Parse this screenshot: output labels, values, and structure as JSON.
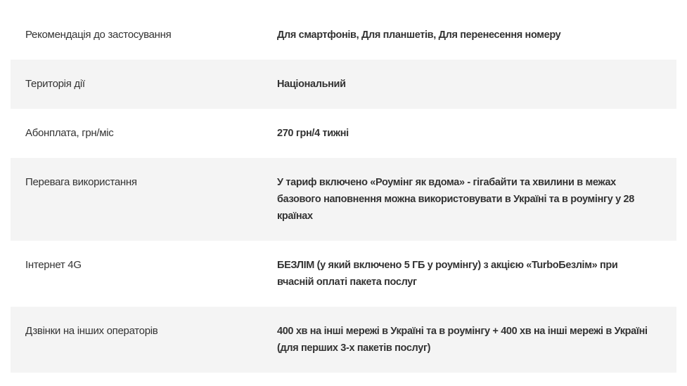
{
  "rows": [
    {
      "label": "Рекомендація до застосування",
      "value": "Для смартфонів, Для планшетів, Для перенесення номеру"
    },
    {
      "label": "Територія дії",
      "value": "Національний"
    },
    {
      "label": "Абонплата, грн/міс",
      "value": "270 грн/4 тижні"
    },
    {
      "label": "Перевага використання",
      "value": "У тариф включено «Роумінг як вдома» - гігабайти та хвилини в межах базового наповнення можна використовувати в Україні та в роумінгу у 28 країнах"
    },
    {
      "label": "Інтернет 4G",
      "value": "БЕЗЛІМ (у який включено 5 ГБ у роумінгу) з акцією «TurboБезлім» при вчасній оплаті пакета послуг"
    },
    {
      "label": "Дзвінки на інших операторів",
      "value": "400 хв на інші мережі в Україні та в роумінгу + 400 хв на інші мережі в Україні (для перших 3-х пакетів послуг)"
    }
  ],
  "colors": {
    "stripe": "#f4f4f4",
    "text": "#333333"
  }
}
